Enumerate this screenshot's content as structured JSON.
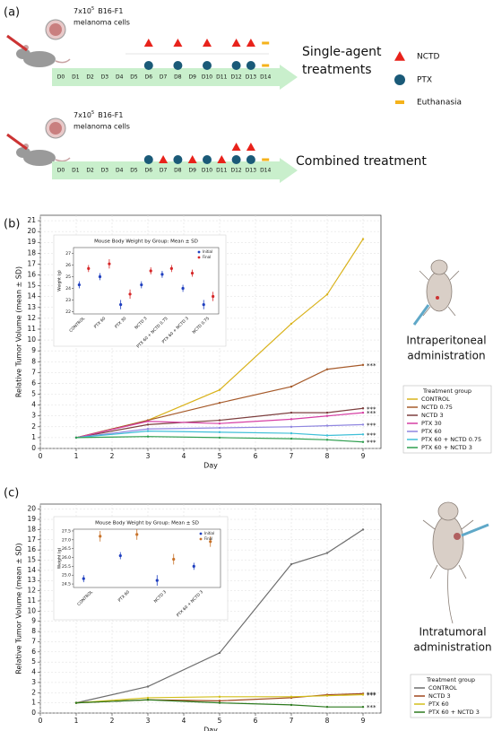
{
  "panel_labels": [
    "(a)",
    "(b)",
    "(c)"
  ],
  "schematic": {
    "cells": {
      "base": "7x10",
      "exponent": "5",
      "line": "B16-F1",
      "medium": "melanoma cells"
    },
    "days": [
      "D0",
      "D1",
      "D2",
      "D3",
      "D4",
      "D5",
      "D6",
      "D7",
      "D8",
      "D9",
      "D10",
      "D11",
      "D12",
      "D13",
      "D14"
    ],
    "legend": [
      "NCTD",
      "PTX",
      "Euthanasia"
    ],
    "timelines": [
      {
        "label": [
          "Single-agent",
          "treatments"
        ]
      },
      {
        "label": [
          "Combined treatment"
        ]
      }
    ]
  },
  "routes": [
    [
      "Intraperitoneal",
      "administration"
    ],
    [
      "Intratumoral",
      "administration"
    ]
  ],
  "chart_data": [
    {
      "type": "line",
      "x_label": "Day",
      "y_label": "Relative Tumor Volume (mean ± SD)",
      "x": [
        1,
        3,
        5,
        7,
        8,
        9
      ],
      "xlim": [
        0,
        9.5
      ],
      "xticks": [
        0,
        1,
        2,
        3,
        4,
        5,
        6,
        7,
        8,
        9
      ],
      "ylim": [
        0,
        21.5
      ],
      "yticks": [
        0,
        1,
        2,
        3,
        4,
        5,
        6,
        7,
        8,
        9,
        10,
        11,
        12,
        13,
        14,
        15,
        16,
        17,
        18,
        19,
        20,
        21
      ],
      "grid": true,
      "legend_title": "Treatment group",
      "legend_position": "lower right",
      "series": [
        {
          "name": "CONTROL",
          "color": "#d9b21a",
          "values": [
            1,
            2.6,
            5.4,
            11.5,
            14.2,
            19.3
          ]
        },
        {
          "name": "NCTD 0.75",
          "color": "#a65a2a",
          "values": [
            1,
            2.6,
            4.2,
            5.7,
            7.3,
            7.7
          ],
          "end_label": "***"
        },
        {
          "name": "NCTD 3",
          "color": "#7d3f3f",
          "values": [
            1,
            2.2,
            2.6,
            3.3,
            3.3,
            3.7
          ],
          "end_label": "***"
        },
        {
          "name": "PTX 30",
          "color": "#d63fa4",
          "values": [
            1,
            2.5,
            2.3,
            2.7,
            3.0,
            3.3
          ],
          "end_label": "***"
        },
        {
          "name": "PTX 60",
          "color": "#8f86e0",
          "values": [
            1,
            1.8,
            1.9,
            2.0,
            2.1,
            2.2
          ],
          "end_label": "***"
        },
        {
          "name": "PTX 60 + NCTD 0.75",
          "color": "#3fbfd8",
          "values": [
            1,
            1.6,
            1.5,
            1.4,
            1.2,
            1.3
          ],
          "end_label": "***"
        },
        {
          "name": "PTX 60 + NCTD 3",
          "color": "#2e9e4f",
          "values": [
            1,
            1.1,
            1.0,
            0.9,
            0.8,
            0.6
          ],
          "end_label": "***"
        }
      ]
    },
    {
      "type": "errorbar",
      "title": "Mouse Body Weight by Group: Mean ± SD",
      "y_label": "Weight (g)",
      "categories": [
        "CONTROL",
        "PTX 60",
        "PTX 30",
        "NCTD 3",
        "PTX 60 + NCTD 0.75",
        "PTX 60 + NCTD 3",
        "NCTD 0.75"
      ],
      "ylim": [
        21.8,
        27.5
      ],
      "yticks": [
        22,
        23,
        24,
        25,
        26,
        27
      ],
      "series": [
        {
          "name": "Initial",
          "color": "#1f3fbf",
          "values": [
            24.3,
            25.0,
            22.6,
            24.3,
            25.2,
            24.0,
            22.6
          ],
          "errors": [
            0.3,
            0.3,
            0.4,
            0.3,
            0.3,
            0.3,
            0.4
          ]
        },
        {
          "name": "Final",
          "color": "#d62728",
          "values": [
            25.7,
            26.1,
            23.5,
            25.5,
            25.7,
            25.3,
            23.3
          ],
          "errors": [
            0.3,
            0.4,
            0.4,
            0.3,
            0.3,
            0.3,
            0.4
          ]
        }
      ]
    },
    {
      "type": "line",
      "x_label": "Day",
      "y_label": "Relative Tumor Volume (mean ± SD)",
      "x": [
        1,
        3,
        5,
        7,
        8,
        9
      ],
      "xlim": [
        0,
        9.5
      ],
      "xticks": [
        0,
        1,
        2,
        3,
        4,
        5,
        6,
        7,
        8,
        9
      ],
      "ylim": [
        0,
        20.5
      ],
      "yticks": [
        0,
        1,
        2,
        3,
        4,
        5,
        6,
        7,
        8,
        9,
        10,
        11,
        12,
        13,
        14,
        15,
        16,
        17,
        18,
        19,
        20
      ],
      "grid": true,
      "legend_title": "Treatment group",
      "legend_position": "lower right",
      "series": [
        {
          "name": "CONTROL",
          "color": "#6e6e6e",
          "values": [
            1,
            2.6,
            5.9,
            14.6,
            15.7,
            18.0
          ]
        },
        {
          "name": "NCTD 3",
          "color": "#a0471d",
          "values": [
            1,
            1.3,
            1.2,
            1.5,
            1.8,
            1.9
          ],
          "end_label": "***"
        },
        {
          "name": "PTX 60",
          "color": "#d2bf1a",
          "values": [
            1,
            1.5,
            1.6,
            1.6,
            1.7,
            1.8
          ],
          "end_label": "***"
        },
        {
          "name": "PTX 60 + NCTD 3",
          "color": "#2d7a1f",
          "values": [
            1,
            1.3,
            1.0,
            0.8,
            0.6,
            0.6
          ],
          "end_label": "***"
        }
      ]
    },
    {
      "type": "errorbar",
      "title": "Mouse Body Weight by Group: Mean ± SD",
      "y_label": "Weight (g)",
      "categories": [
        "CONTROL",
        "PTX 60",
        "NCTD 3",
        "PTX 60 + NCTD 3"
      ],
      "ylim": [
        24.3,
        27.6
      ],
      "yticks": [
        24.5,
        {
          "value": 25,
          "label": "25.0"
        },
        25.5,
        {
          "value": 26,
          "label": "26.0"
        },
        26.5,
        {
          "value": 27,
          "label": "27.0"
        },
        27.5
      ],
      "series": [
        {
          "name": "Initial",
          "color": "#1f3fbf",
          "values": [
            24.8,
            26.1,
            24.7,
            25.5
          ],
          "errors": [
            0.2,
            0.2,
            0.3,
            0.2
          ]
        },
        {
          "name": "Final",
          "color": "#c8722a",
          "values": [
            27.2,
            27.3,
            25.9,
            26.9
          ],
          "errors": [
            0.3,
            0.3,
            0.3,
            0.3
          ]
        }
      ]
    }
  ]
}
